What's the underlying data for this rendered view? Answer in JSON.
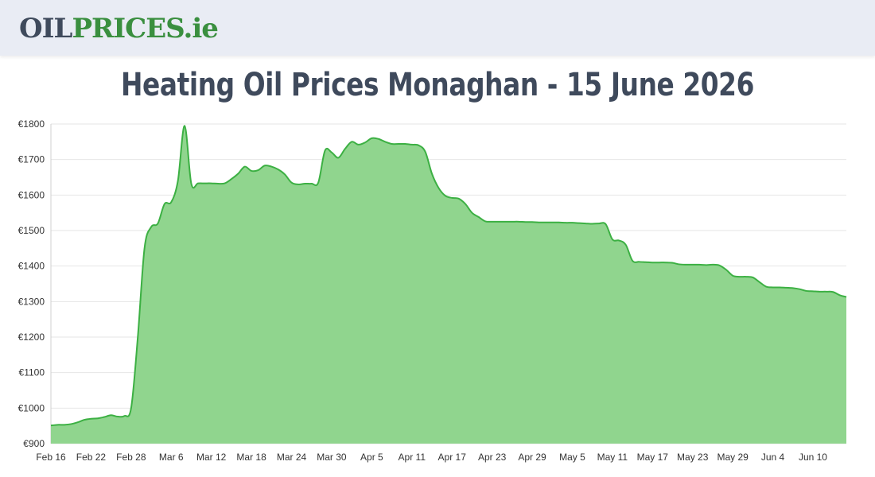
{
  "header": {
    "logo_part1": "OIL",
    "logo_part2": "PRICES",
    "logo_part3": ".ie"
  },
  "page_title": "Heating Oil Prices Monaghan - 15 June 2026",
  "colors": {
    "line": "#3cb043",
    "fill": "#90d58e",
    "grid": "#e6e6e6",
    "title": "#3f4a5c"
  },
  "chart_data": {
    "type": "area",
    "title": "",
    "xlabel": "",
    "ylabel": "",
    "grid": true,
    "ylim": [
      900,
      1800
    ],
    "y_ticks": [
      "€900",
      "€1000",
      "€1100",
      "€1200",
      "€1300",
      "€1400",
      "€1500",
      "€1600",
      "€1700",
      "€1800"
    ],
    "x_ticks": [
      "Feb 16",
      "Feb 22",
      "Feb 28",
      "Mar 6",
      "Mar 12",
      "Mar 18",
      "Mar 24",
      "Mar 30",
      "Apr 5",
      "Apr 11",
      "Apr 17",
      "Apr 23",
      "Apr 29",
      "May 5",
      "May 11",
      "May 17",
      "May 23",
      "May 29",
      "Jun 4",
      "Jun 10"
    ],
    "series": [
      {
        "x": [
          "Feb 16",
          "Feb 17",
          "Feb 18",
          "Feb 19",
          "Feb 20",
          "Feb 21",
          "Feb 22",
          "Feb 23",
          "Feb 24",
          "Feb 25",
          "Feb 26",
          "Feb 27",
          "Feb 28",
          "Mar 1",
          "Mar 2",
          "Mar 3",
          "Mar 4",
          "Mar 5",
          "Mar 6",
          "Mar 7",
          "Mar 8",
          "Mar 9",
          "Mar 10",
          "Mar 11",
          "Mar 12",
          "Mar 13",
          "Mar 14",
          "Mar 15",
          "Mar 16",
          "Mar 17",
          "Mar 18",
          "Mar 19",
          "Mar 20",
          "Mar 21",
          "Mar 22",
          "Mar 23",
          "Mar 24",
          "Mar 25",
          "Mar 26",
          "Mar 27",
          "Mar 28",
          "Mar 29",
          "Mar 30",
          "Mar 31",
          "Apr 1",
          "Apr 2",
          "Apr 3",
          "Apr 4",
          "Apr 5",
          "Apr 6",
          "Apr 7",
          "Apr 8",
          "Apr 9",
          "Apr 10",
          "Apr 11",
          "Apr 12",
          "Apr 13",
          "Apr 14",
          "Apr 15",
          "Apr 16",
          "Apr 17",
          "Apr 18",
          "Apr 19",
          "Apr 20",
          "Apr 21",
          "Apr 22",
          "Apr 23",
          "Apr 24",
          "Apr 25",
          "Apr 26",
          "Apr 27",
          "Apr 28",
          "Apr 29",
          "Apr 30",
          "May 1",
          "May 2",
          "May 3",
          "May 4",
          "May 5",
          "May 6",
          "May 7",
          "May 8",
          "May 9",
          "May 10",
          "May 11",
          "May 12",
          "May 13",
          "May 14",
          "May 15",
          "May 16",
          "May 17",
          "May 18",
          "May 19",
          "May 20",
          "May 21",
          "May 22",
          "May 23",
          "May 24",
          "May 25",
          "May 26",
          "May 27",
          "May 28",
          "May 29",
          "May 30",
          "May 31",
          "Jun 1",
          "Jun 2",
          "Jun 3",
          "Jun 4",
          "Jun 5",
          "Jun 6",
          "Jun 7",
          "Jun 8",
          "Jun 9",
          "Jun 10",
          "Jun 11",
          "Jun 12",
          "Jun 13",
          "Jun 14",
          "Jun 15"
        ],
        "values": [
          951,
          953,
          953,
          955,
          960,
          967,
          970,
          971,
          975,
          980,
          976,
          978,
          1000,
          1200,
          1450,
          1510,
          1520,
          1575,
          1580,
          1640,
          1795,
          1632,
          1633,
          1633,
          1633,
          1632,
          1633,
          1645,
          1660,
          1680,
          1668,
          1670,
          1683,
          1680,
          1672,
          1658,
          1635,
          1630,
          1632,
          1632,
          1635,
          1725,
          1720,
          1705,
          1730,
          1750,
          1742,
          1748,
          1760,
          1758,
          1750,
          1744,
          1744,
          1744,
          1742,
          1740,
          1722,
          1660,
          1620,
          1598,
          1592,
          1590,
          1575,
          1550,
          1538,
          1526,
          1525,
          1525,
          1525,
          1525,
          1525,
          1524,
          1524,
          1523,
          1523,
          1523,
          1523,
          1522,
          1522,
          1521,
          1520,
          1519,
          1520,
          1518,
          1475,
          1472,
          1460,
          1415,
          1412,
          1411,
          1410,
          1410,
          1410,
          1409,
          1405,
          1404,
          1404,
          1404,
          1403,
          1404,
          1402,
          1390,
          1373,
          1370,
          1370,
          1368,
          1355,
          1342,
          1340,
          1340,
          1339,
          1338,
          1335,
          1330,
          1329,
          1328,
          1328,
          1327,
          1318,
          1313
        ]
      }
    ]
  }
}
